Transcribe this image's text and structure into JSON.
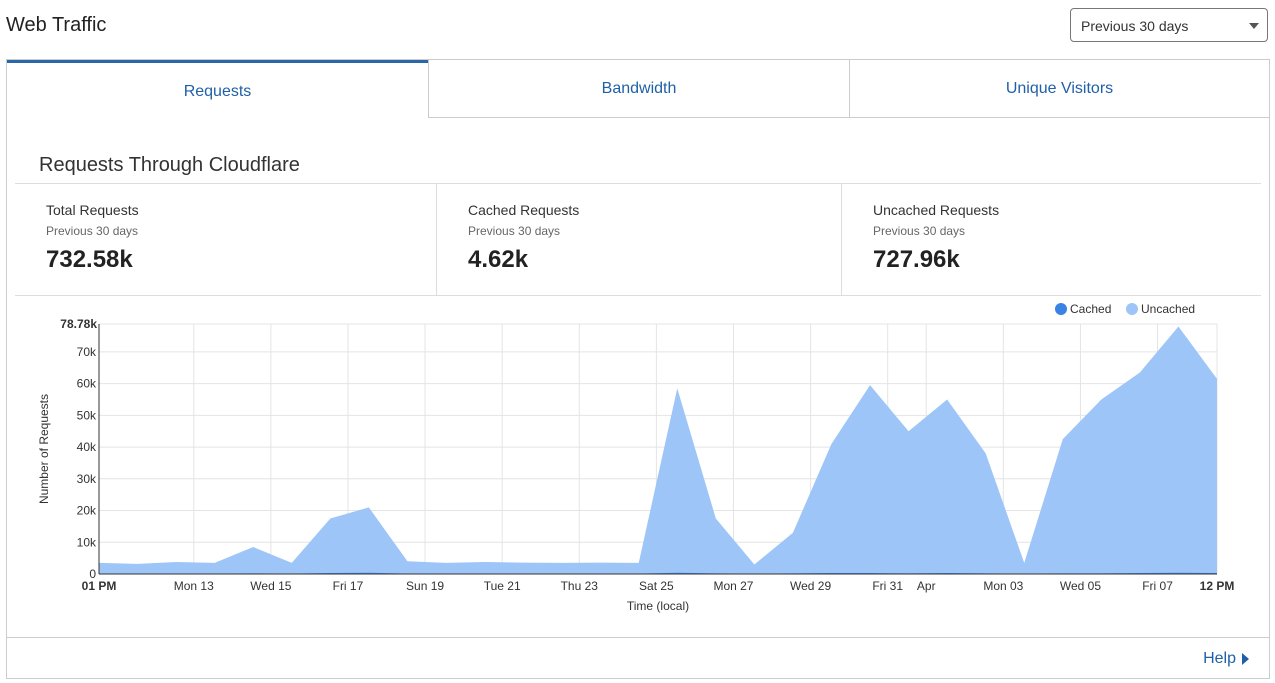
{
  "header": {
    "title": "Web Traffic",
    "range_selected": "Previous 30 days"
  },
  "tabs": [
    {
      "label": "Requests",
      "active": true
    },
    {
      "label": "Bandwidth",
      "active": false
    },
    {
      "label": "Unique Visitors",
      "active": false
    }
  ],
  "section": {
    "title": "Requests Through Cloudflare"
  },
  "stats": [
    {
      "label": "Total Requests",
      "period": "Previous 30 days",
      "value": "732.58k"
    },
    {
      "label": "Cached Requests",
      "period": "Previous 30 days",
      "value": "4.62k"
    },
    {
      "label": "Uncached Requests",
      "period": "Previous 30 days",
      "value": "727.96k"
    }
  ],
  "colors": {
    "accent": "#2060a8",
    "cached": "#3b82e6",
    "uncached": "#9ec5f7"
  },
  "chart_data": {
    "type": "area",
    "ylabel": "Number of Requests",
    "xlabel": "Time (local)",
    "ylim": [
      0,
      78780
    ],
    "y_max_label": "78.78k",
    "y_ticks": [
      0,
      10000,
      20000,
      30000,
      40000,
      50000,
      60000,
      70000
    ],
    "y_tick_labels": [
      "0",
      "10k",
      "20k",
      "30k",
      "40k",
      "50k",
      "60k",
      "70k"
    ],
    "x_tick_labels": [
      "01 PM",
      "Mon 13",
      "Wed 15",
      "Fri 17",
      "Sun 19",
      "Tue 21",
      "Thu 23",
      "Sat 25",
      "Mon 27",
      "Wed 29",
      "Fri 31",
      "Apr",
      "Mon 03",
      "Wed 05",
      "Fri 07",
      "12 PM"
    ],
    "x_tick_days": [
      0,
      2.458,
      4.458,
      6.458,
      8.458,
      10.458,
      12.458,
      14.458,
      16.458,
      18.458,
      20.458,
      21.458,
      23.458,
      25.458,
      27.458,
      29.0
    ],
    "legend": [
      {
        "name": "Cached",
        "color": "#3b82e6"
      },
      {
        "name": "Uncached",
        "color": "#9ec5f7"
      }
    ],
    "legend_position": "top-right",
    "grid": true,
    "x_days": [
      0,
      1,
      2,
      3,
      4,
      5,
      6,
      7,
      8,
      9,
      10,
      11,
      12,
      13,
      14,
      15,
      16,
      17,
      18,
      19,
      20,
      21,
      22,
      23,
      24,
      25,
      26,
      27,
      28,
      29
    ],
    "series": [
      {
        "name": "Uncached",
        "values": [
          3500,
          3200,
          3800,
          3500,
          8500,
          3500,
          17500,
          21000,
          4000,
          3500,
          3800,
          3600,
          3500,
          3600,
          3500,
          58500,
          17500,
          3000,
          13000,
          41000,
          59500,
          45000,
          55000,
          38000,
          3500,
          42500,
          55000,
          63500,
          78000,
          61500
        ]
      },
      {
        "name": "Cached",
        "values": [
          100,
          100,
          100,
          100,
          200,
          100,
          300,
          400,
          100,
          100,
          100,
          100,
          100,
          100,
          100,
          400,
          200,
          100,
          200,
          300,
          300,
          200,
          300,
          200,
          100,
          200,
          200,
          300,
          400,
          300
        ]
      }
    ]
  },
  "footer": {
    "help_label": "Help"
  }
}
